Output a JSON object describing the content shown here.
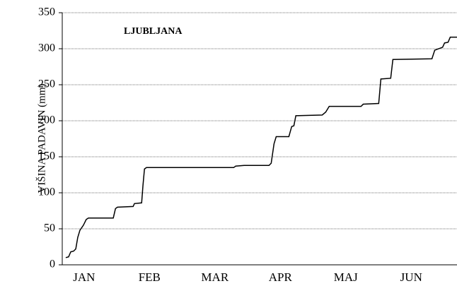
{
  "chart_data": {
    "type": "line",
    "title": "LJUBLJANA",
    "y_label": "VIŠINA PADAVIN (mm)",
    "x": [
      1.6,
      2.9,
      3.9,
      5.2,
      6.2,
      7.1,
      8.1,
      9.7,
      11.0,
      12.0,
      23.4,
      24.4,
      25.3,
      32.5,
      33.1,
      36.4,
      37.0,
      37.7,
      38.6,
      78.6,
      79.5,
      83.4,
      94.8,
      95.8,
      97.1,
      98.1,
      103.9,
      105.2,
      106.2,
      107.1,
      119.2,
      120.8,
      122.4,
      137.0,
      138.0,
      145.1,
      146.1,
      150.6,
      151.6,
      169.5,
      170.8,
      174.4,
      175.3,
      176.9,
      177.9,
      181.0
    ],
    "series": [
      {
        "name": "LJUBLJANA",
        "color": "#000000",
        "values": [
          10,
          11,
          18,
          19,
          22,
          38,
          48,
          55,
          63,
          65,
          65,
          78,
          80,
          81,
          85,
          86,
          110,
          133,
          135,
          135,
          137,
          138,
          138,
          141,
          168,
          178,
          178,
          192,
          193,
          207,
          208,
          212,
          220,
          220,
          223,
          224,
          258,
          259,
          285,
          286,
          298,
          302,
          308,
          309,
          316,
          316
        ]
      }
    ],
    "xlim": [
      0,
      181
    ],
    "xticks": [
      {
        "value": 10,
        "label": "JAN"
      },
      {
        "value": 40,
        "label": "FEB"
      },
      {
        "value": 70,
        "label": "MAR"
      },
      {
        "value": 100,
        "label": "APR"
      },
      {
        "value": 130,
        "label": "MAJ"
      },
      {
        "value": 160,
        "label": "JUN"
      }
    ],
    "ylim": [
      0,
      350
    ],
    "yticks": [
      0,
      50,
      100,
      150,
      200,
      250,
      300,
      350
    ],
    "grid": true
  }
}
